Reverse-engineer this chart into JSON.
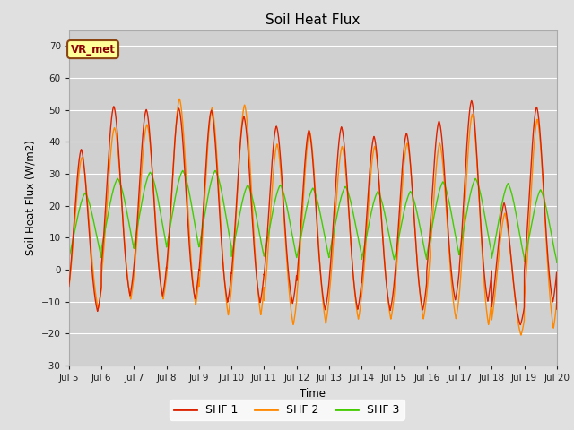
{
  "title": "Soil Heat Flux",
  "ylabel": "Soil Heat Flux (W/m2)",
  "xlabel": "Time",
  "xlim_days": [
    5,
    20
  ],
  "ylim": [
    -30,
    75
  ],
  "yticks": [
    -30,
    -20,
    -10,
    0,
    10,
    20,
    30,
    40,
    50,
    60,
    70
  ],
  "xtick_days": [
    5,
    6,
    7,
    8,
    9,
    10,
    11,
    12,
    13,
    14,
    15,
    16,
    17,
    18,
    19,
    20
  ],
  "xtick_labels": [
    "Jul 5",
    "Jul 6",
    "Jul 7",
    "Jul 8",
    "Jul 9",
    "Jul 10",
    "Jul 11",
    "Jul 12",
    "Jul 13",
    "Jul 14",
    "Jul 15",
    "Jul 16",
    "Jul 17",
    "Jul 18",
    "Jul 19",
    "Jul 20"
  ],
  "colors": {
    "SHF1": "#dd2200",
    "SHF2": "#ff8800",
    "SHF3": "#44cc00"
  },
  "legend_labels": [
    "SHF 1",
    "SHF 2",
    "SHF 3"
  ],
  "annotation_text": "VR_met",
  "annotation_color": "#8B0000",
  "background_color": "#e0e0e0",
  "plot_bg_color": "#d0d0d0",
  "grid_color": "#ffffff",
  "linewidth": 1.0,
  "n_points": 4000,
  "shf1_day_amps": [
    48,
    59,
    58,
    59,
    59,
    57,
    54,
    54,
    55,
    52,
    53,
    55,
    62,
    33,
    60,
    30
  ],
  "shf1_day_mins": [
    -17,
    -13,
    -13,
    -14,
    -15,
    -15,
    -15,
    -17,
    -17,
    -17,
    -17,
    -14,
    -15,
    -20,
    -15,
    -20
  ],
  "shf2_day_amps": [
    46,
    54,
    55,
    65,
    64,
    65,
    54,
    58,
    52,
    52,
    53,
    53,
    64,
    33,
    63,
    59
  ],
  "shf2_day_mins": [
    -17,
    -15,
    -15,
    -18,
    -21,
    -21,
    -23,
    -23,
    -21,
    -21,
    -21,
    -21,
    -24,
    -24,
    -25,
    -25
  ],
  "shf3_day_amps": [
    29,
    33,
    35,
    36,
    36,
    32,
    32,
    31,
    31,
    30,
    30,
    33,
    34,
    33,
    31,
    30
  ],
  "shf3_day_mins": [
    -10,
    -9,
    -9,
    -10,
    -10,
    -11,
    -11,
    -11,
    -10,
    -11,
    -11,
    -11,
    -11,
    -12,
    -12,
    -12
  ]
}
